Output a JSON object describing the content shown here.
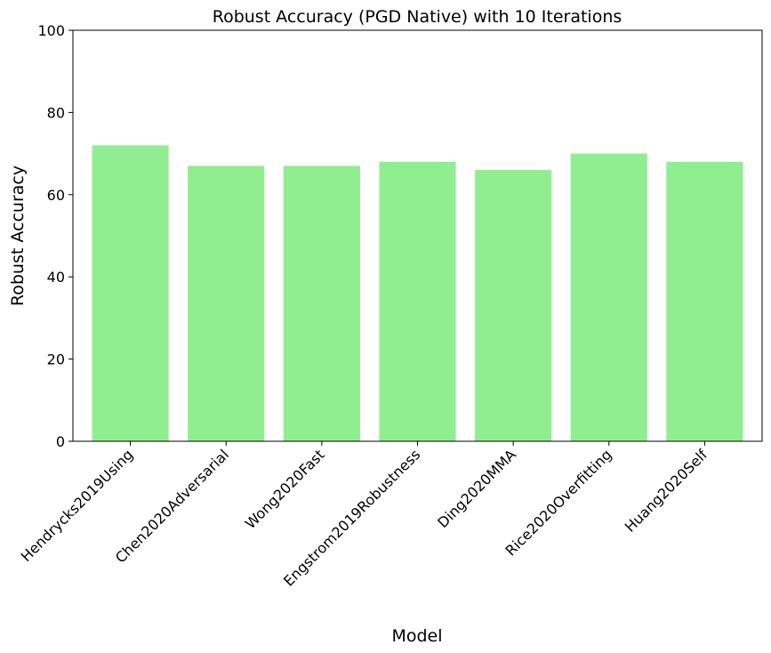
{
  "chart_data": {
    "type": "bar",
    "title": "Robust Accuracy (PGD Native) with 10 Iterations",
    "xlabel": "Model",
    "ylabel": "Robust Accuracy",
    "categories": [
      "Hendrycks2019Using",
      "Chen2020Adversarial",
      "Wong2020Fast",
      "Engstrom2019Robustness",
      "Ding2020MMA",
      "Rice2020Overfitting",
      "Huang2020Self"
    ],
    "values": [
      72,
      67,
      67,
      68,
      66,
      70,
      68
    ],
    "ylim": [
      0,
      100
    ],
    "yticks": [
      0,
      20,
      40,
      60,
      80,
      100
    ],
    "ytick_labels": [
      "0",
      "20",
      "40",
      "60",
      "80",
      "100"
    ],
    "bar_color": "#90ee90",
    "grid": false,
    "legend": "none"
  }
}
